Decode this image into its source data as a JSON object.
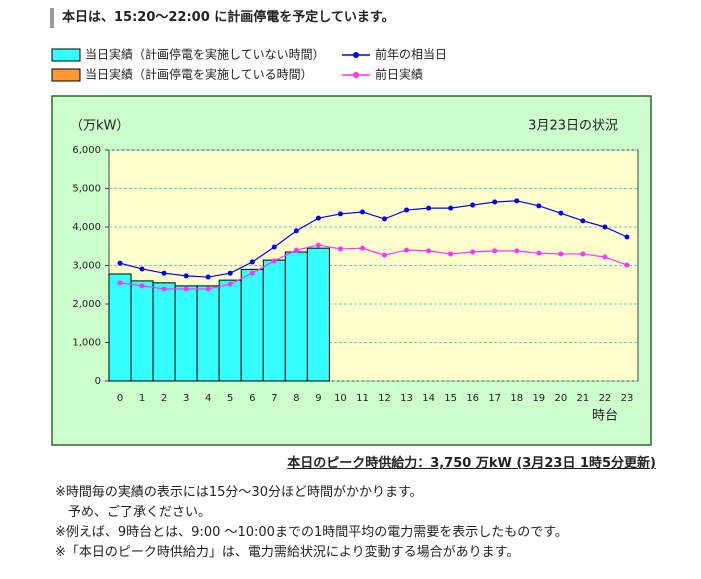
{
  "header": "本日は、15:20〜22:00 に計画停電を予定しています。",
  "chart_data": {
    "type": "bar",
    "unit_label": "（万kW）",
    "date_label": "3月23日の状況",
    "xlabel": "時台",
    "categories": [
      "0",
      "1",
      "2",
      "3",
      "4",
      "5",
      "6",
      "7",
      "8",
      "9",
      "10",
      "11",
      "12",
      "13",
      "14",
      "15",
      "16",
      "17",
      "18",
      "19",
      "20",
      "21",
      "22",
      "23"
    ],
    "ylim": [
      0,
      6000
    ],
    "yticks": [
      {
        "value": 0,
        "label": "0"
      },
      {
        "value": 1000,
        "label": "1,000"
      },
      {
        "value": 2000,
        "label": "2,000"
      },
      {
        "value": 3000,
        "label": "3,000"
      },
      {
        "value": 4000,
        "label": "4,000"
      },
      {
        "value": 5000,
        "label": "5,000"
      },
      {
        "value": 6000,
        "label": "6,000"
      }
    ],
    "grid": true,
    "series": [
      {
        "name": "当日実績（計画停電を実施していない時間）",
        "type": "bar",
        "color": "#33ffff",
        "values": [
          2780,
          2600,
          2550,
          2470,
          2470,
          2620,
          2900,
          3140,
          3350,
          3450,
          null,
          null,
          null,
          null,
          null,
          null,
          null,
          null,
          null,
          null,
          null,
          null,
          null,
          null
        ]
      },
      {
        "name": "当日実績（計画停電を実施している時間）",
        "type": "bar",
        "color": "#ff9933",
        "values": [
          null,
          null,
          null,
          null,
          null,
          null,
          null,
          null,
          null,
          null,
          null,
          null,
          null,
          null,
          null,
          null,
          null,
          null,
          null,
          null,
          null,
          null,
          null,
          null
        ]
      },
      {
        "name": "前年の相当日",
        "type": "line",
        "color": "#0000ff",
        "values": [
          3060,
          2910,
          2800,
          2730,
          2700,
          2800,
          3090,
          3480,
          3900,
          4230,
          4340,
          4390,
          4210,
          4440,
          4490,
          4490,
          4570,
          4650,
          4680,
          4550,
          4360,
          4160,
          4000,
          3740
        ]
      },
      {
        "name": "前日実績",
        "type": "line",
        "color": "#ff33ff",
        "values": [
          2550,
          2470,
          2390,
          2390,
          2390,
          2520,
          2800,
          3120,
          3400,
          3530,
          3430,
          3450,
          3270,
          3400,
          3380,
          3300,
          3350,
          3380,
          3380,
          3320,
          3300,
          3300,
          3220,
          3010
        ]
      }
    ]
  },
  "peak": "本日のピーク時供給力：3,750 万kW (3月23日 1時5分更新)",
  "notes": [
    "※時間毎の実績の表示には15分〜30分ほど時間がかかります。",
    "　予め、ご了承ください。",
    "※例えば、9時台とは、9:00 〜10:00までの1時間平均の電力需要を表示したものです。",
    "※「本日のピーク時供給力」は、電力需給状況により変動する場合があります。"
  ]
}
